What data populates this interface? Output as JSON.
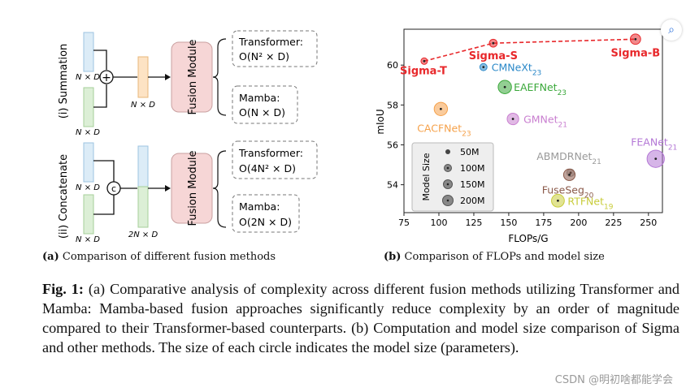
{
  "panel_a": {
    "row_labels": [
      "(i) Summation",
      "(ii) Concatenate"
    ],
    "token_label": "N × D",
    "token_label_2n": "2N × D",
    "fusion_module": "Fusion Module",
    "boxes": [
      {
        "title": "Transformer:",
        "formula": "O(N² × D)"
      },
      {
        "title": "Mamba:",
        "formula": "O(N × D)"
      },
      {
        "title": "Transformer:",
        "formula": "O(4N² × D)"
      },
      {
        "title": "Mamba:",
        "formula": "O(2N × D)"
      }
    ],
    "sum_symbol": "+",
    "concat_symbol": "c",
    "caption_label": "(a)",
    "caption_text": "Comparison of different fusion methods"
  },
  "panel_b": {
    "caption_label": "(b)",
    "caption_text": "Comparison of FLOPs and model size",
    "legend_title": "Model Size",
    "legend_items": [
      "50M",
      "100M",
      "150M",
      "200M"
    ]
  },
  "chart_data": {
    "type": "scatter",
    "xlabel": "FLOPs/G",
    "ylabel": "mIoU",
    "xlim": [
      75,
      260
    ],
    "ylim": [
      52.6,
      61.8
    ],
    "xticks": [
      75,
      100,
      125,
      150,
      175,
      200,
      225,
      250
    ],
    "yticks": [
      54,
      56,
      58,
      60
    ],
    "grid": true,
    "points": [
      {
        "name": "Sigma-T",
        "x": 89.5,
        "y": 60.2,
        "size": 48,
        "color": "#e8282b"
      },
      {
        "name": "Sigma-S",
        "x": 138.9,
        "y": 61.1,
        "size": 69,
        "color": "#e8282b"
      },
      {
        "name": "Sigma-B",
        "x": 240.7,
        "y": 61.3,
        "size": 121,
        "color": "#e8282b"
      },
      {
        "name": "CMNeXt",
        "sub": "23",
        "x": 131.9,
        "y": 59.9,
        "size": 58,
        "color": "#2a88c8"
      },
      {
        "name": "EAEFNet",
        "sub": "23",
        "x": 147.2,
        "y": 58.9,
        "size": 200,
        "color": "#3aa83a"
      },
      {
        "name": "CACFNet",
        "sub": "23",
        "x": 101.4,
        "y": 57.8,
        "size": 199,
        "color": "#f5a14a"
      },
      {
        "name": "GMNet",
        "sub": "21",
        "x": 153.0,
        "y": 57.3,
        "size": 150,
        "color": "#c97fd0"
      },
      {
        "name": "FEANet",
        "sub": "21",
        "x": 255.2,
        "y": 55.3,
        "size": 337,
        "color": "#b478d6"
      },
      {
        "name": "ABMDRNet",
        "sub": "21",
        "x": 194.3,
        "y": 54.6,
        "size": 64,
        "color": "#9a9a9a"
      },
      {
        "name": "FuseSeg",
        "sub": "20",
        "x": 193.4,
        "y": 54.5,
        "size": 150,
        "color": "#8b5a4a"
      },
      {
        "name": "RTFNet",
        "sub": "19",
        "x": 185.2,
        "y": 53.2,
        "size": 185,
        "color": "#c8cc3a"
      }
    ],
    "sigma_line": [
      "Sigma-T",
      "Sigma-S",
      "Sigma-B"
    ]
  },
  "caption": {
    "label": "Fig. 1:",
    "text": "(a) Comparative analysis of complexity across different fusion methods utilizing Transformer and Mamba: Mamba-based fusion approaches significantly reduce complexity by an order of magnitude compared to their Transformer-based counterparts. (b) Computation and model size comparison of Sigma and other methods. The size of each circle indicates the model size (parameters)."
  },
  "watermark": "CSDN @明初啥都能学会",
  "colors": {
    "blue_block": "#dcecf7",
    "green_block": "#dcefd6",
    "orange_block": "#fde3c4",
    "fusion_block": "#f6d6d6"
  }
}
